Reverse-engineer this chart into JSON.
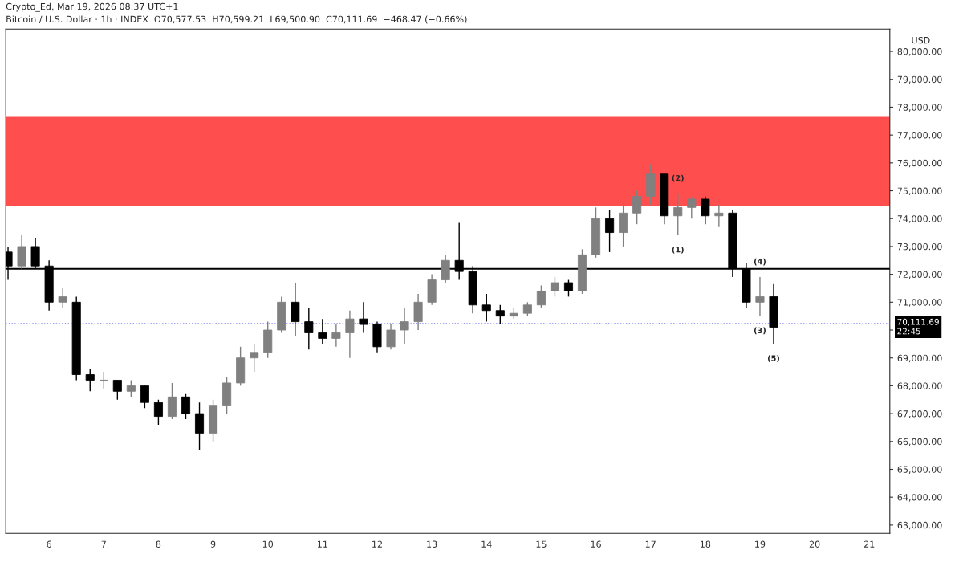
{
  "chart_data": {
    "type": "candlestick",
    "title": "Bitcoin / U.S. Dollar · 1h · INDEX  O70,577.53  H70,599.21  L69,500.90  C70,111.69  −468.47 (−0.66%)",
    "ylabel": "USD",
    "x": [
      "2026-03-05T06:00",
      "2026-03-05T12:00",
      "2026-03-05T18:00",
      "2026-03-06T00:00",
      "2026-03-06T06:00",
      "2026-03-06T12:00",
      "2026-03-06T18:00",
      "2026-03-07T00:00",
      "2026-03-07T06:00",
      "2026-03-07T12:00",
      "2026-03-07T18:00",
      "2026-03-08T00:00",
      "2026-03-08T06:00",
      "2026-03-08T12:00",
      "2026-03-08T18:00",
      "2026-03-09T00:00",
      "2026-03-09T06:00",
      "2026-03-09T12:00",
      "2026-03-09T18:00",
      "2026-03-10T00:00",
      "2026-03-10T06:00",
      "2026-03-10T12:00",
      "2026-03-10T18:00",
      "2026-03-11T00:00",
      "2026-03-11T06:00",
      "2026-03-11T12:00",
      "2026-03-11T18:00",
      "2026-03-12T00:00",
      "2026-03-12T06:00",
      "2026-03-12T12:00",
      "2026-03-12T18:00",
      "2026-03-13T00:00",
      "2026-03-13T06:00",
      "2026-03-13T12:00",
      "2026-03-13T18:00",
      "2026-03-14T00:00",
      "2026-03-14T06:00",
      "2026-03-14T12:00",
      "2026-03-14T18:00",
      "2026-03-15T00:00",
      "2026-03-15T06:00",
      "2026-03-15T12:00",
      "2026-03-15T18:00",
      "2026-03-16T00:00",
      "2026-03-16T06:00",
      "2026-03-16T12:00",
      "2026-03-16T18:00",
      "2026-03-17T00:00",
      "2026-03-17T06:00",
      "2026-03-17T12:00",
      "2026-03-17T18:00",
      "2026-03-18T00:00",
      "2026-03-18T06:00",
      "2026-03-18T12:00",
      "2026-03-18T18:00",
      "2026-03-19T00:00",
      "2026-03-19T06:00"
    ],
    "ohlc": [
      [
        72800,
        73000,
        71800,
        72300
      ],
      [
        72300,
        73400,
        72200,
        73000
      ],
      [
        73000,
        73300,
        72200,
        72300
      ],
      [
        72300,
        72500,
        70700,
        71000
      ],
      [
        71000,
        71500,
        70800,
        71200
      ],
      [
        71000,
        71200,
        68200,
        68400
      ],
      [
        68400,
        68600,
        67800,
        68200
      ],
      [
        68200,
        68500,
        67900,
        68200
      ],
      [
        68200,
        68200,
        67500,
        67800
      ],
      [
        67800,
        68200,
        67600,
        68000
      ],
      [
        68000,
        68000,
        67200,
        67400
      ],
      [
        67400,
        67500,
        66600,
        66900
      ],
      [
        66900,
        68100,
        66800,
        67600
      ],
      [
        67600,
        67700,
        66800,
        67000
      ],
      [
        67000,
        67400,
        65700,
        66300
      ],
      [
        66300,
        67500,
        66000,
        67300
      ],
      [
        67300,
        68300,
        67000,
        68100
      ],
      [
        68100,
        69400,
        68000,
        69000
      ],
      [
        69000,
        69500,
        68500,
        69200
      ],
      [
        69200,
        70300,
        69000,
        70000
      ],
      [
        70000,
        71200,
        69900,
        71000
      ],
      [
        71000,
        71700,
        69800,
        70300
      ],
      [
        70300,
        70800,
        69300,
        69900
      ],
      [
        69900,
        70400,
        69500,
        69700
      ],
      [
        69700,
        70200,
        69400,
        69900
      ],
      [
        69900,
        70700,
        69000,
        70400
      ],
      [
        70400,
        71000,
        69900,
        70200
      ],
      [
        70200,
        70300,
        69200,
        69400
      ],
      [
        69400,
        70200,
        69300,
        70000
      ],
      [
        70000,
        70800,
        69500,
        70300
      ],
      [
        70300,
        71300,
        70000,
        71000
      ],
      [
        71000,
        72000,
        70900,
        71800
      ],
      [
        71800,
        72700,
        71700,
        72500
      ],
      [
        72500,
        73850,
        71800,
        72100
      ],
      [
        72100,
        72300,
        70600,
        70900
      ],
      [
        70900,
        71300,
        70300,
        70700
      ],
      [
        70700,
        70900,
        70200,
        70500
      ],
      [
        70500,
        70800,
        70400,
        70600
      ],
      [
        70600,
        71000,
        70500,
        70900
      ],
      [
        70900,
        71600,
        70800,
        71400
      ],
      [
        71400,
        71900,
        71200,
        71700
      ],
      [
        71700,
        71800,
        71200,
        71400
      ],
      [
        71400,
        72900,
        71300,
        72700
      ],
      [
        72700,
        74400,
        72600,
        74000
      ],
      [
        74000,
        74300,
        72800,
        73500
      ],
      [
        73500,
        74600,
        73000,
        74200
      ],
      [
        74200,
        75000,
        73800,
        74800
      ],
      [
        74800,
        75950,
        74500,
        75600
      ],
      [
        75600,
        75600,
        73800,
        74100
      ],
      [
        74100,
        74900,
        73400,
        74400
      ],
      [
        74400,
        74800,
        74000,
        74700
      ],
      [
        74700,
        74800,
        73800,
        74100
      ],
      [
        74100,
        74500,
        73700,
        74200
      ],
      [
        74200,
        74300,
        71900,
        72200
      ],
      [
        72200,
        72400,
        70800,
        71000
      ],
      [
        71000,
        71900,
        70500,
        71200
      ],
      [
        71200,
        71650,
        69500,
        70100
      ]
    ],
    "colors": [
      "#000000",
      "#808080",
      "#000000",
      "#000000",
      "#808080",
      "#000000",
      "#000000",
      "#808080",
      "#000000",
      "#808080",
      "#000000",
      "#000000",
      "#808080",
      "#000000",
      "#000000",
      "#808080",
      "#808080",
      "#808080",
      "#808080",
      "#808080",
      "#808080",
      "#000000",
      "#000000",
      "#000000",
      "#808080",
      "#808080",
      "#000000",
      "#000000",
      "#808080",
      "#808080",
      "#808080",
      "#808080",
      "#808080",
      "#000000",
      "#000000",
      "#000000",
      "#000000",
      "#808080",
      "#808080",
      "#808080",
      "#808080",
      "#000000",
      "#808080",
      "#808080",
      "#000000",
      "#808080",
      "#808080",
      "#808080",
      "#000000",
      "#808080",
      "#808080",
      "#000000",
      "#808080",
      "#000000",
      "#000000",
      "#808080",
      "#000000"
    ],
    "xlim": [
      "2026-03-05T05:00",
      "2026-03-21T09:00"
    ],
    "xticks": [
      {
        "value": "2026-03-06",
        "label": "6"
      },
      {
        "value": "2026-03-07",
        "label": "7"
      },
      {
        "value": "2026-03-08",
        "label": "8"
      },
      {
        "value": "2026-03-09",
        "label": "9"
      },
      {
        "value": "2026-03-10",
        "label": "10"
      },
      {
        "value": "2026-03-11",
        "label": "11"
      },
      {
        "value": "2026-03-12",
        "label": "12"
      },
      {
        "value": "2026-03-13",
        "label": "13"
      },
      {
        "value": "2026-03-14",
        "label": "14"
      },
      {
        "value": "2026-03-15",
        "label": "15"
      },
      {
        "value": "2026-03-16",
        "label": "16"
      },
      {
        "value": "2026-03-17",
        "label": "17"
      },
      {
        "value": "2026-03-18",
        "label": "18"
      },
      {
        "value": "2026-03-19",
        "label": "19"
      },
      {
        "value": "2026-03-20",
        "label": "20"
      },
      {
        "value": "2026-03-21",
        "label": "21"
      }
    ],
    "ylim": [
      62700,
      80800
    ],
    "yticks": [
      {
        "value": 63000,
        "label": "63,000.00"
      },
      {
        "value": 64000,
        "label": "64,000.00"
      },
      {
        "value": 65000,
        "label": "65,000.00"
      },
      {
        "value": 66000,
        "label": "66,000.00"
      },
      {
        "value": 67000,
        "label": "67,000.00"
      },
      {
        "value": 68000,
        "label": "68,000.00"
      },
      {
        "value": 69000,
        "label": "69,000.00"
      },
      {
        "value": 70000,
        "label": null
      },
      {
        "value": 71000,
        "label": "71,000.00"
      },
      {
        "value": 72000,
        "label": "72,000.00"
      },
      {
        "value": 73000,
        "label": "73,000.00"
      },
      {
        "value": 74000,
        "label": "74,000.00"
      },
      {
        "value": 75000,
        "label": "75,000.00"
      },
      {
        "value": 76000,
        "label": "76,000.00"
      },
      {
        "value": 77000,
        "label": "77,000.00"
      },
      {
        "value": 78000,
        "label": "78,000.00"
      },
      {
        "value": 79000,
        "label": "79,000.00"
      },
      {
        "value": 80000,
        "label": "80,000.00"
      }
    ],
    "ref_lines": [
      {
        "axis": "y",
        "value": 72200,
        "color": "#000000",
        "line_style": "solid"
      },
      {
        "axis": "y",
        "value": 70230,
        "color": "#7b7ff0",
        "line_style": "dotted"
      }
    ],
    "bands": [
      {
        "axis": "y",
        "from": 74450,
        "to": 77650,
        "color": "#ff4444"
      }
    ],
    "annotations": [
      "Crypto_Ed, Mar 19, 2026 08:37 UTC+1",
      {
        "text": "(1)",
        "x": "2026-03-17T12:00",
        "y": 73400
      },
      {
        "text": "(2)",
        "x": "2026-03-17T12:00",
        "y": 74900
      },
      {
        "text": "(3)",
        "x": "2026-03-19T00:00",
        "y": 70500
      },
      {
        "text": "(4)",
        "x": "2026-03-19T00:00",
        "y": 71900
      },
      {
        "text": "(5)",
        "x": "2026-03-19T06:00",
        "y": 69500
      },
      "70,111.69",
      "22:45"
    ],
    "grid": false,
    "legend": false
  }
}
